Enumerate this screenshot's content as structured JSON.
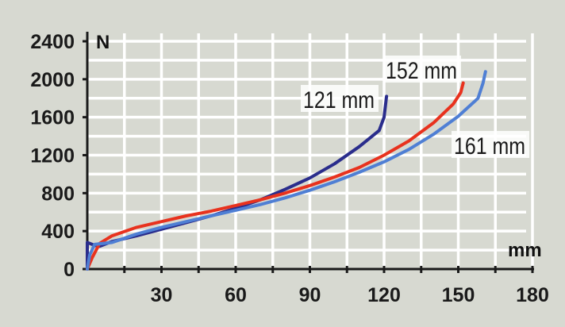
{
  "chart_data": {
    "type": "line",
    "title": "",
    "xlabel": "mm",
    "ylabel": "N",
    "xlim": [
      0,
      180
    ],
    "ylim": [
      0,
      2400
    ],
    "grid": true,
    "x_ticks": [
      30,
      60,
      90,
      120,
      150,
      180
    ],
    "x_tick_labels": [
      "30",
      "60",
      "90",
      "120",
      "150",
      "180"
    ],
    "y_ticks": [
      0,
      400,
      800,
      1200,
      1600,
      2000,
      2400
    ],
    "y_tick_labels": [
      "0",
      "400",
      "800",
      "1200",
      "1600",
      "2000",
      "2400"
    ],
    "series": [
      {
        "name": "121 mm",
        "color": "#2a2d8c",
        "x": [
          0,
          0,
          3,
          5,
          10,
          20,
          30,
          40,
          50,
          60,
          70,
          80,
          90,
          100,
          110,
          118,
          120,
          121
        ],
        "y": [
          0,
          280,
          250,
          240,
          290,
          350,
          420,
          490,
          560,
          640,
          730,
          840,
          960,
          1110,
          1290,
          1460,
          1600,
          1820
        ]
      },
      {
        "name": "152 mm",
        "color": "#e8321e",
        "x": [
          0,
          2,
          5,
          10,
          20,
          30,
          40,
          50,
          60,
          70,
          80,
          90,
          100,
          110,
          120,
          130,
          140,
          148,
          151,
          152
        ],
        "y": [
          0,
          120,
          270,
          350,
          440,
          500,
          560,
          610,
          670,
          730,
          800,
          880,
          970,
          1070,
          1200,
          1350,
          1540,
          1740,
          1860,
          1960
        ]
      },
      {
        "name": "161 mm",
        "color": "#4f7fd4",
        "x": [
          0,
          1,
          3,
          10,
          20,
          30,
          40,
          50,
          60,
          70,
          80,
          90,
          100,
          110,
          120,
          130,
          140,
          150,
          158,
          160,
          161
        ],
        "y": [
          0,
          150,
          260,
          280,
          370,
          440,
          500,
          560,
          620,
          680,
          750,
          830,
          920,
          1020,
          1130,
          1260,
          1420,
          1610,
          1800,
          1960,
          2080
        ]
      }
    ],
    "annotations": [
      {
        "text": "121 mm",
        "series": "121 mm"
      },
      {
        "text": "152 mm",
        "series": "152 mm"
      },
      {
        "text": "161 mm",
        "series": "161 mm"
      }
    ]
  }
}
